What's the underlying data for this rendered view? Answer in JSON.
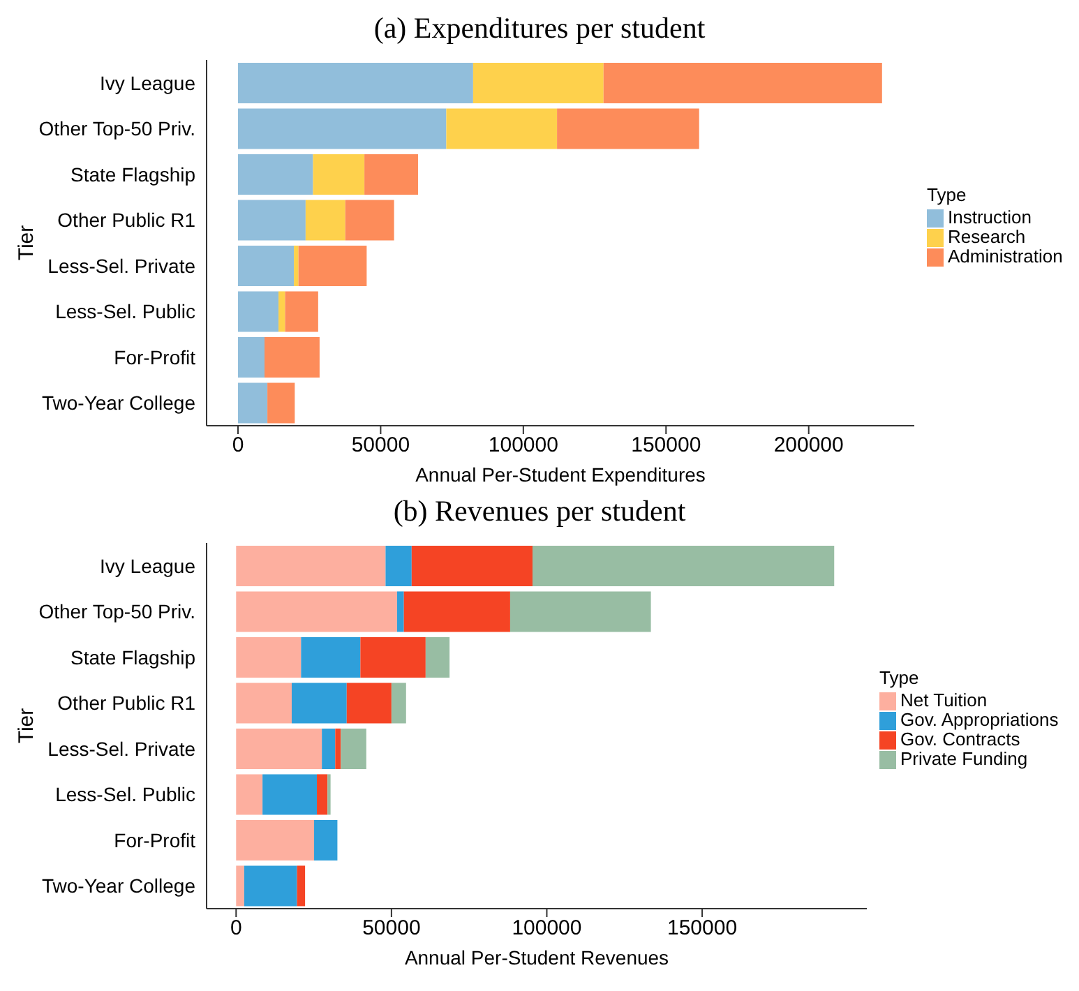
{
  "chart_data": [
    {
      "type": "bar",
      "title": "(a) Expenditures per student",
      "xlabel": "Annual Per-Student Expenditures",
      "ylabel": "Tier",
      "legend_title": "Type",
      "orientation": "horizontal",
      "stacked": true,
      "legend": "right",
      "grid": false,
      "categories": [
        "Ivy League",
        "Other Top-50 Priv.",
        "State Flagship",
        "Other Public R1",
        "Less-Sel. Private",
        "Less-Sel. Public",
        "For-Profit",
        "Two-Year College"
      ],
      "xlim": [
        -11000,
        237000
      ],
      "xticks": [
        0,
        50000,
        100000,
        150000,
        200000
      ],
      "series": [
        {
          "name": "Instruction",
          "color": "#91bedb",
          "values": [
            82400,
            73000,
            26300,
            23700,
            19600,
            14200,
            9300,
            10300
          ]
        },
        {
          "name": "Research",
          "color": "#fed14c",
          "values": [
            45700,
            38800,
            18000,
            13900,
            1600,
            2300,
            0,
            0
          ]
        },
        {
          "name": "Administration",
          "color": "#fd8c5a",
          "values": [
            97600,
            49800,
            18800,
            17100,
            23900,
            11600,
            19300,
            9600
          ]
        }
      ]
    },
    {
      "type": "bar",
      "title": "(b) Revenues per student",
      "xlabel": "Annual Per-Student Revenues",
      "ylabel": "Tier",
      "legend_title": "Type",
      "orientation": "horizontal",
      "stacked": true,
      "legend": "right",
      "grid": false,
      "categories": [
        "Ivy League",
        "Other Top-50 Priv.",
        "State Flagship",
        "Other Public R1",
        "Less-Sel. Private",
        "Less-Sel. Public",
        "For-Profit",
        "Two-Year College"
      ],
      "xlim": [
        -9500,
        203000
      ],
      "xticks": [
        0,
        50000,
        100000,
        150000
      ],
      "series": [
        {
          "name": "Net Tuition",
          "color": "#fdaf9f",
          "values": [
            48100,
            51800,
            20900,
            17900,
            27600,
            8500,
            25100,
            2600
          ]
        },
        {
          "name": "Gov. Appropriations",
          "color": "#2f9fda",
          "values": [
            8400,
            2200,
            19100,
            17700,
            4300,
            17500,
            7500,
            17000
          ]
        },
        {
          "name": "Gov. Contracts",
          "color": "#f54424",
          "values": [
            38900,
            34200,
            21000,
            14400,
            1800,
            3400,
            0,
            2600
          ]
        },
        {
          "name": "Private Funding",
          "color": "#98bda3",
          "values": [
            97100,
            45300,
            7700,
            4700,
            8200,
            1000,
            0,
            0
          ]
        }
      ]
    }
  ]
}
